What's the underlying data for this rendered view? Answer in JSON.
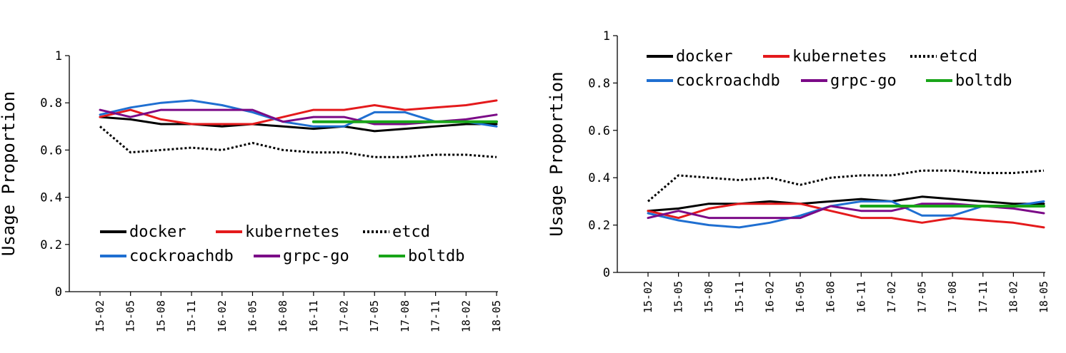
{
  "chart_data": [
    {
      "type": "line",
      "ylabel": "Usage Proportion",
      "ylim": [
        0,
        1
      ],
      "yticks": [
        "0",
        "0.2",
        "0.4",
        "0.6",
        "0.8",
        "1"
      ],
      "categories": [
        "15-02",
        "15-05",
        "15-08",
        "15-11",
        "16-02",
        "16-05",
        "16-08",
        "16-11",
        "17-02",
        "17-05",
        "17-08",
        "17-11",
        "18-02",
        "18-05"
      ],
      "legend_position": "bottom-left",
      "series": [
        {
          "name": "docker",
          "color": "#000000",
          "dash": "solid",
          "values": [
            0.74,
            0.73,
            0.71,
            0.71,
            0.7,
            0.71,
            0.7,
            0.69,
            0.7,
            0.68,
            0.69,
            0.7,
            0.71,
            0.71
          ]
        },
        {
          "name": "kubernetes",
          "color": "#e41a1c",
          "dash": "solid",
          "values": [
            0.74,
            0.77,
            0.73,
            0.71,
            0.71,
            0.71,
            0.74,
            0.77,
            0.77,
            0.79,
            0.77,
            0.78,
            0.79,
            0.81
          ]
        },
        {
          "name": "etcd",
          "color": "#000000",
          "dash": "dotted",
          "values": [
            0.7,
            0.59,
            0.6,
            0.61,
            0.6,
            0.63,
            0.6,
            0.59,
            0.59,
            0.57,
            0.57,
            0.58,
            0.58,
            0.57
          ]
        },
        {
          "name": "cockroachdb",
          "color": "#1f6fd1",
          "dash": "solid",
          "values": [
            0.75,
            0.78,
            0.8,
            0.81,
            0.79,
            0.76,
            0.72,
            0.7,
            0.7,
            0.76,
            0.76,
            0.72,
            0.72,
            0.7
          ]
        },
        {
          "name": "grpc-go",
          "color": "#7b0a87",
          "dash": "solid",
          "values": [
            0.77,
            0.74,
            0.77,
            0.77,
            0.77,
            0.77,
            0.72,
            0.74,
            0.74,
            0.71,
            0.71,
            0.72,
            0.73,
            0.75
          ]
        },
        {
          "name": "boltdb",
          "color": "#19a519",
          "dash": "solid",
          "values": [
            null,
            null,
            null,
            null,
            null,
            null,
            null,
            0.72,
            0.72,
            0.72,
            0.72,
            0.72,
            0.72,
            0.72
          ]
        }
      ]
    },
    {
      "type": "line",
      "ylabel": "Usage Proportion",
      "ylim": [
        0,
        1
      ],
      "yticks": [
        "0",
        "0.2",
        "0.4",
        "0.6",
        "0.8",
        "1"
      ],
      "categories": [
        "15-02",
        "15-05",
        "15-08",
        "15-11",
        "16-02",
        "16-05",
        "16-08",
        "16-11",
        "17-02",
        "17-05",
        "17-08",
        "17-11",
        "18-02",
        "18-05"
      ],
      "legend_position": "top-left",
      "series": [
        {
          "name": "docker",
          "color": "#000000",
          "dash": "solid",
          "values": [
            0.26,
            0.27,
            0.29,
            0.29,
            0.3,
            0.29,
            0.3,
            0.31,
            0.3,
            0.32,
            0.31,
            0.3,
            0.29,
            0.29
          ]
        },
        {
          "name": "kubernetes",
          "color": "#e41a1c",
          "dash": "solid",
          "values": [
            0.26,
            0.23,
            0.27,
            0.29,
            0.29,
            0.29,
            0.26,
            0.23,
            0.23,
            0.21,
            0.23,
            0.22,
            0.21,
            0.19
          ]
        },
        {
          "name": "etcd",
          "color": "#000000",
          "dash": "dotted",
          "values": [
            0.3,
            0.41,
            0.4,
            0.39,
            0.4,
            0.37,
            0.4,
            0.41,
            0.41,
            0.43,
            0.43,
            0.42,
            0.42,
            0.43
          ]
        },
        {
          "name": "cockroachdb",
          "color": "#1f6fd1",
          "dash": "solid",
          "values": [
            0.25,
            0.22,
            0.2,
            0.19,
            0.21,
            0.24,
            0.28,
            0.3,
            0.3,
            0.24,
            0.24,
            0.28,
            0.28,
            0.3
          ]
        },
        {
          "name": "grpc-go",
          "color": "#7b0a87",
          "dash": "solid",
          "values": [
            0.23,
            0.26,
            0.23,
            0.23,
            0.23,
            0.23,
            0.28,
            0.26,
            0.26,
            0.29,
            0.29,
            0.28,
            0.27,
            0.25
          ]
        },
        {
          "name": "boltdb",
          "color": "#19a519",
          "dash": "solid",
          "values": [
            null,
            null,
            null,
            null,
            null,
            null,
            null,
            0.28,
            0.28,
            0.28,
            0.28,
            0.28,
            0.28,
            0.28
          ]
        }
      ]
    }
  ]
}
